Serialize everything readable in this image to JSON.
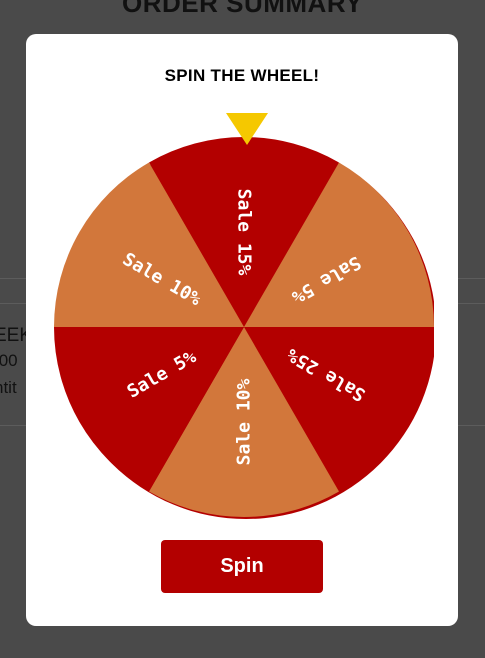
{
  "background": {
    "title": "ORDER SUMMARY",
    "item_name_fragment": "EEK",
    "item_price_fragment": ".00",
    "item_qty_fragment": "ntit"
  },
  "modal": {
    "title": "SPIN THE WHEEL!",
    "spin_label": "Spin",
    "pointer_color": "#f5c800"
  },
  "wheel": {
    "colors": {
      "dark": "#b30000",
      "light": "#d2773b",
      "text": "#ffffff"
    },
    "segments": [
      {
        "label": "Sale 15%",
        "tone": "dark"
      },
      {
        "label": "Sale 5%",
        "tone": "light"
      },
      {
        "label": "Sale 25%",
        "tone": "dark"
      },
      {
        "label": "Sale 10%",
        "tone": "light"
      },
      {
        "label": "Sale 5%",
        "tone": "dark"
      },
      {
        "label": "Sale 10%",
        "tone": "light"
      }
    ]
  }
}
